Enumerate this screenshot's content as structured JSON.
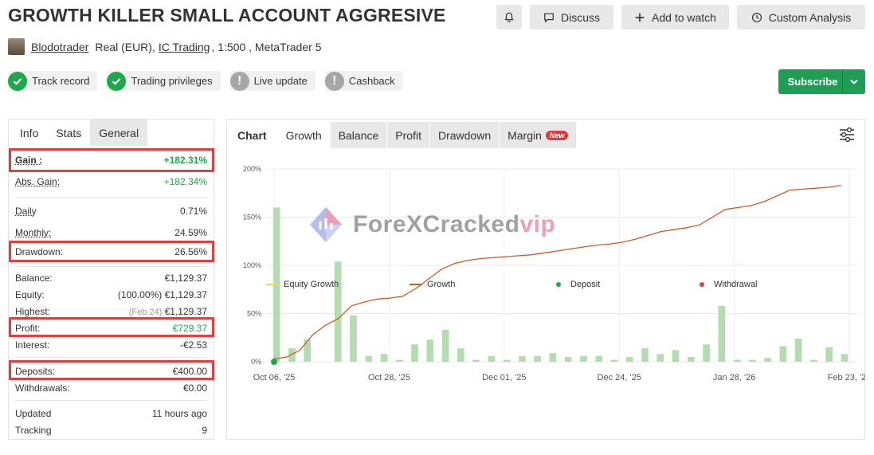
{
  "title": "GROWTH KILLER SMALL ACCOUNT AGGRESIVE",
  "header_buttons": {
    "discuss": "Discuss",
    "watch": "Add to watch",
    "custom": "Custom Analysis"
  },
  "account": {
    "user": "Blodotrader",
    "type": "Real (EUR),",
    "broker": "IC Trading",
    "details": ", 1:500 , MetaTrader 5"
  },
  "badges": [
    {
      "label": "Track record",
      "status": "check"
    },
    {
      "label": "Trading privileges",
      "status": "check"
    },
    {
      "label": "Live update",
      "status": "warn"
    },
    {
      "label": "Cashback",
      "status": "warn"
    }
  ],
  "subscribe_label": "Subscribe",
  "left_tabs": [
    "Info",
    "Stats",
    "General"
  ],
  "stats": {
    "gain": {
      "label": "Gain :",
      "value": "+182.31%"
    },
    "abs_gain": {
      "label": "Abs. Gain:",
      "value": "+182.34%"
    },
    "daily": {
      "label": "Daily",
      "value": "0.71%"
    },
    "monthly": {
      "label": "Monthly:",
      "value": "24.59%"
    },
    "drawdown": {
      "label": "Drawdown:",
      "value": "26.56%"
    },
    "balance": {
      "label": "Balance:",
      "value": "€1,129.37"
    },
    "equity": {
      "label": "Equity:",
      "note": "(100.00%)",
      "value": "€1,129.37"
    },
    "highest": {
      "label": "Highest:",
      "note": "(Feb 24)",
      "value": "€1,129.37"
    },
    "profit": {
      "label": "Profit:",
      "value": "€729.37"
    },
    "interest": {
      "label": "Interest:",
      "value": "-€2.53"
    },
    "deposits": {
      "label": "Deposits:",
      "value": "€400.00"
    },
    "withdrawals": {
      "label": "Withdrawals:",
      "value": "€0.00"
    },
    "updated": {
      "label": "Updated",
      "value": "11 hours ago"
    },
    "tracking": {
      "label": "Tracking",
      "value": "9"
    }
  },
  "chart_tabs": {
    "chart": "Chart",
    "growth": "Growth",
    "balance": "Balance",
    "profit": "Profit",
    "drawdown": "Drawdown",
    "margin": "Margin",
    "new": "New"
  },
  "watermark": {
    "main": "ForeXCracked",
    "accent": "vip"
  },
  "colors": {
    "growth_line": "#cc5a2a",
    "bars": "#b5dcb0",
    "equity": "#e8d85a",
    "deposit": "#1fa84b",
    "withdrawal": "#e04040",
    "subscribe": "#1f9d55"
  },
  "chart_data": {
    "type": "line+bar",
    "y_ticks": [
      "200%",
      "150%",
      "100%",
      "50%",
      "0%"
    ],
    "ylim": [
      0,
      200
    ],
    "x_ticks": [
      "Oct 06, '25",
      "Oct 28, '25",
      "Dec 01, '25",
      "Dec 24, '25",
      "Jan 28, '26",
      "Feb 23, '26"
    ],
    "growth": [
      [
        0,
        3
      ],
      [
        1,
        5
      ],
      [
        2,
        12
      ],
      [
        3,
        28
      ],
      [
        4,
        38
      ],
      [
        5,
        45
      ],
      [
        6,
        58
      ],
      [
        7,
        62
      ],
      [
        8,
        65
      ],
      [
        9,
        66
      ],
      [
        10,
        68
      ],
      [
        11,
        76
      ],
      [
        12,
        86
      ],
      [
        13,
        96
      ],
      [
        14,
        102
      ],
      [
        15,
        105
      ],
      [
        16,
        107
      ],
      [
        17,
        108
      ],
      [
        18,
        109
      ],
      [
        19,
        110
      ],
      [
        20,
        111
      ],
      [
        21,
        113
      ],
      [
        22,
        115
      ],
      [
        23,
        117
      ],
      [
        24,
        119
      ],
      [
        25,
        121
      ],
      [
        26,
        122
      ],
      [
        27,
        124
      ],
      [
        28,
        127
      ],
      [
        29,
        131
      ],
      [
        30,
        135
      ],
      [
        31,
        137
      ],
      [
        32,
        139
      ],
      [
        33,
        142
      ],
      [
        34,
        150
      ],
      [
        35,
        158
      ],
      [
        36,
        160
      ],
      [
        37,
        162
      ],
      [
        38,
        166
      ],
      [
        39,
        172
      ],
      [
        40,
        178
      ],
      [
        41,
        179
      ],
      [
        42,
        180
      ],
      [
        43,
        181
      ],
      [
        44,
        183
      ]
    ],
    "bars": [
      160,
      14,
      23,
      0,
      104,
      48,
      6,
      8,
      2,
      18,
      23,
      33,
      14,
      2,
      6,
      2,
      6,
      6,
      9,
      5,
      6,
      6,
      2,
      5,
      14,
      8,
      12,
      5,
      18,
      58,
      2,
      2,
      4,
      16,
      24,
      2,
      15,
      8
    ],
    "legend": [
      "Equity Growth",
      "Growth",
      "Deposit",
      "Withdrawal"
    ]
  }
}
